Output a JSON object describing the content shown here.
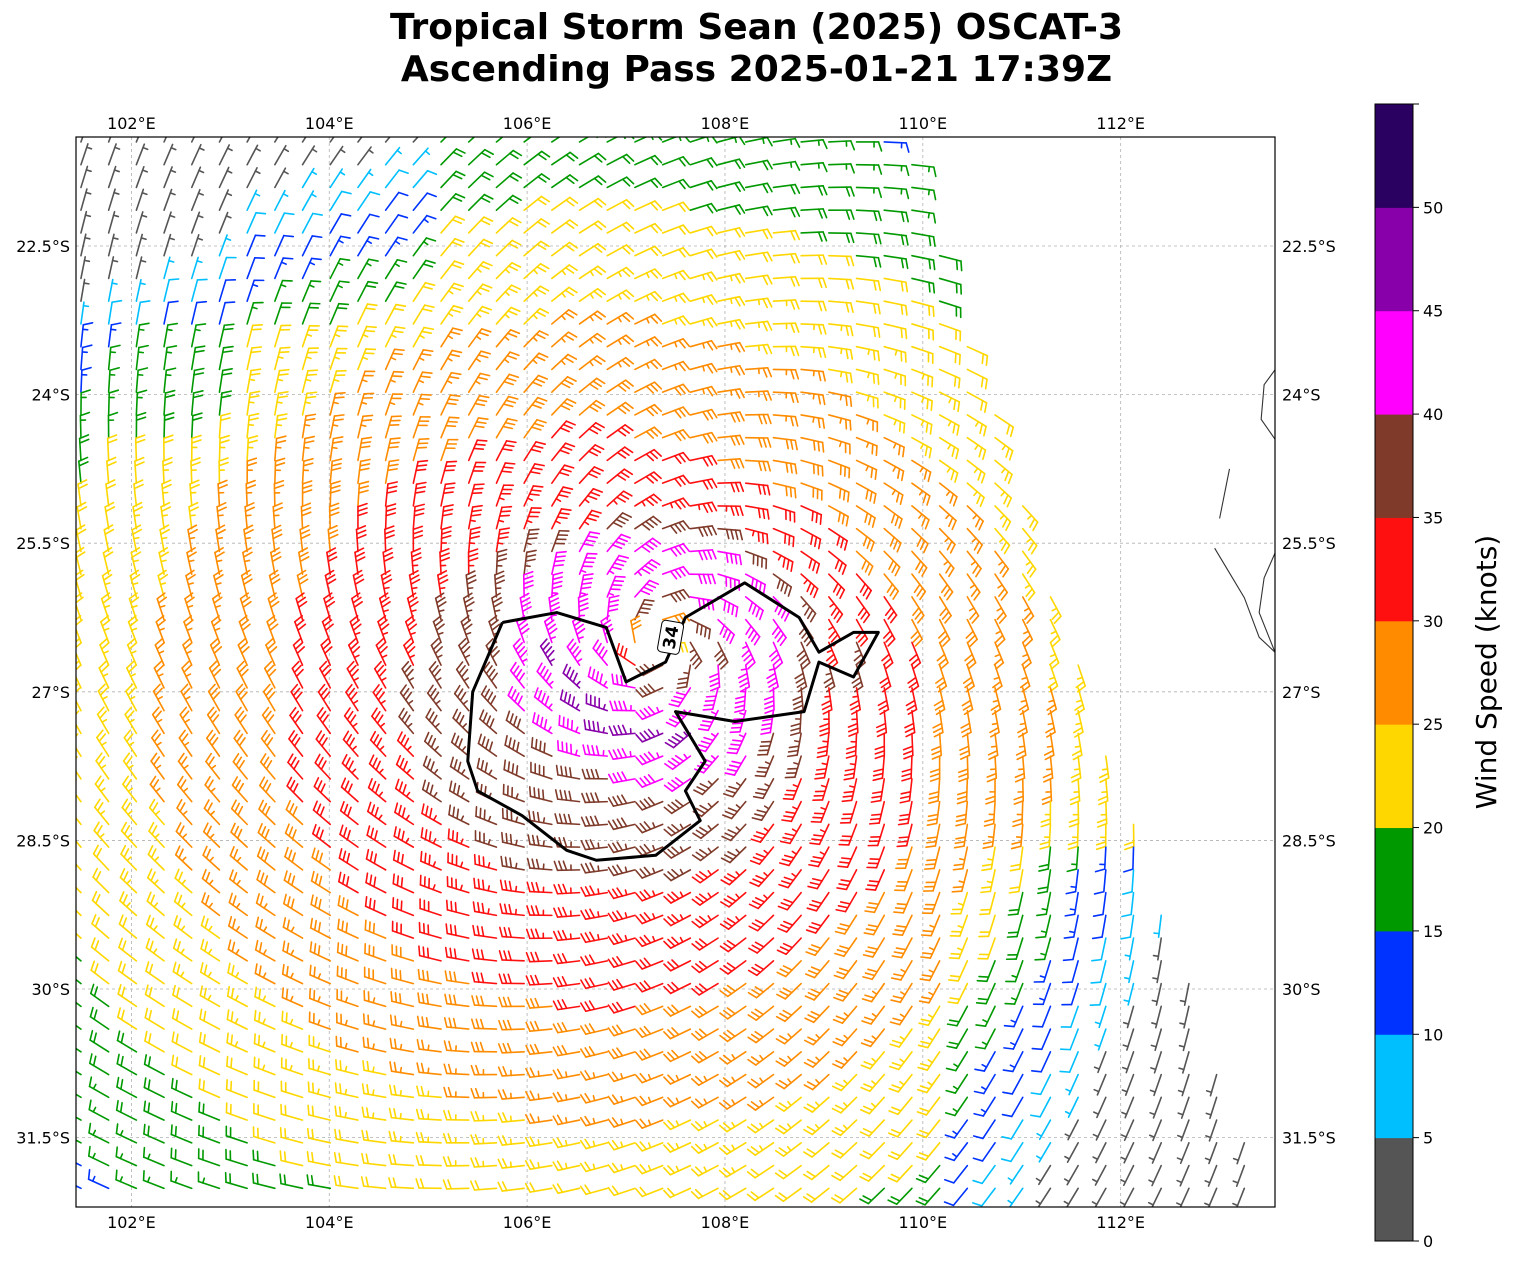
{
  "title_line1": "Tropical Storm Sean (2025) OSCAT-3",
  "title_line2": "Ascending Pass 2025-01-21 17:39Z",
  "map": {
    "lon_range": [
      101.44,
      113.56
    ],
    "lat_range": [
      -32.2,
      -21.4
    ],
    "lon_ticks": [
      {
        "value": 102,
        "label": "102°E"
      },
      {
        "value": 104,
        "label": "104°E"
      },
      {
        "value": 106,
        "label": "106°E"
      },
      {
        "value": 108,
        "label": "108°E"
      },
      {
        "value": 110,
        "label": "110°E"
      },
      {
        "value": 112,
        "label": "112°E"
      }
    ],
    "lat_ticks": [
      {
        "value": -22.5,
        "label": "22.5°S"
      },
      {
        "value": -24,
        "label": "24°S"
      },
      {
        "value": -25.5,
        "label": "25.5°S"
      },
      {
        "value": -27,
        "label": "27°S"
      },
      {
        "value": -28.5,
        "label": "28.5°S"
      },
      {
        "value": -30,
        "label": "30°S"
      },
      {
        "value": -31.5,
        "label": "31.5°S"
      }
    ],
    "storm_center": {
      "lon": 107.35,
      "lat": -26.55
    },
    "contour_label": "34",
    "contour_34kt": [
      [
        105.75,
        -26.3
      ],
      [
        106.3,
        -26.2
      ],
      [
        106.8,
        -26.35
      ],
      [
        107.0,
        -26.9
      ],
      [
        107.4,
        -26.7
      ],
      [
        107.6,
        -26.25
      ],
      [
        108.2,
        -25.9
      ],
      [
        108.75,
        -26.25
      ],
      [
        108.95,
        -26.6
      ],
      [
        109.3,
        -26.4
      ],
      [
        109.55,
        -26.4
      ],
      [
        109.3,
        -26.85
      ],
      [
        108.95,
        -26.7
      ],
      [
        108.8,
        -27.2
      ],
      [
        108.1,
        -27.3
      ],
      [
        107.5,
        -27.2
      ],
      [
        107.8,
        -27.7
      ],
      [
        107.6,
        -28.0
      ],
      [
        107.75,
        -28.3
      ],
      [
        107.3,
        -28.65
      ],
      [
        106.7,
        -28.7
      ],
      [
        106.4,
        -28.6
      ],
      [
        105.95,
        -28.25
      ],
      [
        105.5,
        -28.0
      ],
      [
        105.4,
        -27.7
      ],
      [
        105.45,
        -27.0
      ],
      [
        105.75,
        -26.3
      ]
    ],
    "coastline": [
      [
        113.56,
        -23.75
      ],
      [
        113.45,
        -23.9
      ],
      [
        113.42,
        -24.25
      ],
      [
        113.56,
        -24.45
      ]
    ],
    "coastline2": [
      [
        113.56,
        -25.6
      ],
      [
        113.45,
        -25.85
      ],
      [
        113.4,
        -26.2
      ],
      [
        113.56,
        -26.6
      ]
    ],
    "coastline3": [
      [
        112.95,
        -25.55
      ],
      [
        113.1,
        -25.8
      ],
      [
        113.25,
        -26.05
      ],
      [
        113.4,
        -26.45
      ],
      [
        113.56,
        -26.6
      ]
    ],
    "island": [
      [
        113.1,
        -24.75
      ],
      [
        113.05,
        -25.0
      ],
      [
        113.0,
        -25.25
      ]
    ],
    "swath_east_edge": [
      [
        109.85,
        -21.4
      ],
      [
        110.8,
        -24.4
      ],
      [
        111.8,
        -27.3
      ],
      [
        112.8,
        -30.2
      ],
      [
        113.56,
        -32.2
      ]
    ],
    "barb_spacing_deg": 0.28
  },
  "colorbar": {
    "label": "Wind Speed (knots)",
    "bounds": [
      0,
      5,
      10,
      15,
      20,
      25,
      30,
      35,
      40,
      45,
      50,
      55
    ],
    "colors": [
      "#555555",
      "#00bfff",
      "#0033ff",
      "#009900",
      "#ffd700",
      "#ff8c00",
      "#ff1010",
      "#7f3a2a",
      "#ff00ff",
      "#8800aa",
      "#2a0060"
    ],
    "tick_labels": [
      "0",
      "5",
      "10",
      "15",
      "20",
      "25",
      "30",
      "35",
      "40",
      "45",
      "50"
    ]
  }
}
